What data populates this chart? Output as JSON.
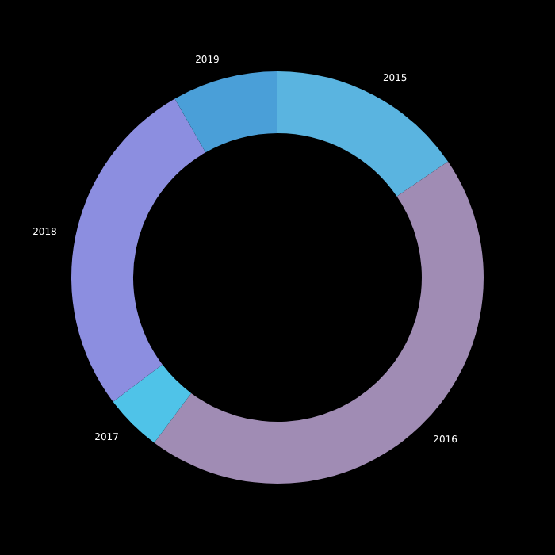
{
  "chart_data": {
    "type": "donut",
    "categories": [
      "2015",
      "2016",
      "2017",
      "2018",
      "2019"
    ],
    "values": [
      15.5,
      44.7,
      4.5,
      27,
      8.3
    ],
    "colors": [
      "#5ab4e0",
      "#a08cb4",
      "#4fc3e8",
      "#8c8ee0",
      "#4a9fd8"
    ],
    "legend": false
  }
}
